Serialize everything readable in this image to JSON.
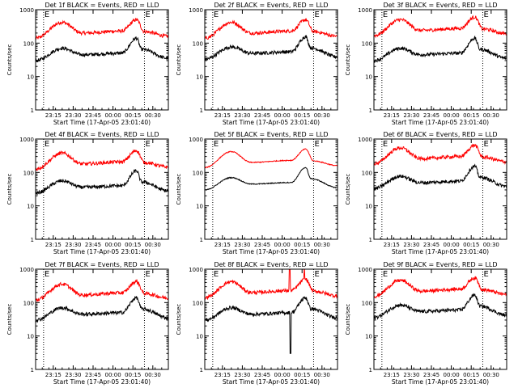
{
  "chart_data": {
    "type": "line",
    "layout_grid": "3x3",
    "y_scale": "log",
    "ylim": [
      1,
      1000
    ],
    "y_ticks": [
      1,
      10,
      100,
      1000
    ],
    "y_tick_labels": [
      "1",
      "10",
      "100",
      "1000"
    ],
    "ylabel": "Counts/sec",
    "xlabel": "Start Time (17-Apr-05 23:01:40)",
    "x_unit": "minutes after 23:01:40",
    "xlim": [
      0,
      100
    ],
    "grid": false,
    "marker_labels": [
      "E",
      "E"
    ],
    "colors": {
      "events": "#000000",
      "lld": "#ff0000",
      "axes": "#000000",
      "background": "#ffffff"
    },
    "series_profiles": {
      "events": {
        "baseline": [
          [
            0,
            30
          ],
          [
            20,
            70
          ],
          [
            35,
            45
          ],
          [
            65,
            50
          ],
          [
            76,
            140
          ],
          [
            80,
            65
          ],
          [
            100,
            35
          ]
        ]
      },
      "lld": {
        "baseline": [
          [
            0,
            140
          ],
          [
            20,
            420
          ],
          [
            35,
            200
          ],
          [
            65,
            230
          ],
          [
            76,
            500
          ],
          [
            82,
            220
          ],
          [
            100,
            160
          ]
        ]
      }
    },
    "panels": [
      {
        "title": "Det 1f BLACK = Events, RED = LLD",
        "x_tick_labels": [
          "23:15",
          "23:30",
          "23:45",
          "00:00",
          "00:15",
          "00:30"
        ],
        "x_ticks": [
          13.3,
          28.3,
          43.3,
          58.3,
          73.3,
          88.3
        ],
        "dotted_lines": [
          6,
          82
        ],
        "events_scale": 1.0,
        "lld_scale": 1.0
      },
      {
        "title": "Det 2f BLACK = Events, RED = LLD",
        "x_tick_labels": [
          "23:15",
          "23:30",
          "23:45",
          "00:00",
          "00:15",
          "00:30"
        ],
        "x_ticks": [
          13.3,
          28.3,
          43.3,
          58.3,
          73.3,
          88.3
        ],
        "dotted_lines": [
          6,
          82
        ],
        "events_scale": 1.1,
        "lld_scale": 1.0
      },
      {
        "title": "Det 3f BLACK = Events, RED = LLD",
        "x_tick_labels": [
          "23:15",
          "23:30",
          "23:45",
          "00:00",
          "00:15",
          "00:30"
        ],
        "x_ticks": [
          13.3,
          28.3,
          43.3,
          58.3,
          73.3,
          88.3
        ],
        "dotted_lines": [
          6,
          82
        ],
        "events_scale": 1.0,
        "lld_scale": 1.2
      },
      {
        "title": "Det 4f BLACK = Events, RED = LLD",
        "x_tick_labels": [
          "23:15",
          "23:30",
          "23:45",
          "00:00",
          "00:15",
          "00:30"
        ],
        "x_ticks": [
          13.3,
          28.3,
          43.3,
          58.3,
          73.3,
          88.3
        ],
        "dotted_lines": [
          6,
          82
        ],
        "events_scale": 0.8,
        "lld_scale": 0.9
      },
      {
        "title": "Det 5f BLACK = Events, RED = LLD",
        "x_tick_labels": [
          "23:15",
          "23:30",
          "23:45",
          "00:00",
          "00:15",
          "00:30"
        ],
        "x_ticks": [
          13.3,
          28.3,
          43.3,
          58.3,
          73.3,
          88.3
        ],
        "dotted_lines": [
          6,
          82
        ],
        "events_scale": 1.0,
        "lld_scale": 1.0,
        "smooth": true
      },
      {
        "title": "Det 6f BLACK = Events, RED = LLD",
        "x_tick_labels": [
          "23:15",
          "23:30",
          "23:45",
          "00:00",
          "00:15",
          "00:30"
        ],
        "x_ticks": [
          13.3,
          28.3,
          43.3,
          58.3,
          73.3,
          88.3
        ],
        "dotted_lines": [
          6,
          82
        ],
        "events_scale": 1.1,
        "lld_scale": 1.3
      },
      {
        "title": "Det 7f BLACK = Events, RED = LLD",
        "x_tick_labels": [
          "23:15",
          "23:30",
          "23:45",
          "00:00",
          "00:15",
          "00:30"
        ],
        "x_ticks": [
          13.3,
          28.3,
          43.3,
          58.3,
          73.3,
          88.3
        ],
        "dotted_lines": [
          6,
          82
        ],
        "events_scale": 1.0,
        "lld_scale": 0.85
      },
      {
        "title": "Det 8f BLACK = Events, RED = LLD",
        "x_tick_labels": [
          "23:15",
          "23:30",
          "23:45",
          "00:00",
          "00:15",
          "00:30"
        ],
        "x_ticks": [
          13.3,
          28.3,
          43.3,
          58.3,
          73.3,
          88.3
        ],
        "dotted_lines": [
          6,
          82
        ],
        "events_scale": 1.0,
        "lld_scale": 1.0,
        "spikes": {
          "lld_x": [
            64,
            75
          ],
          "events_dip_x": [
            64,
            66
          ],
          "events_dip_min": 3
        }
      },
      {
        "title": "Det 9f BLACK = Events, RED = LLD",
        "x_tick_labels": [
          "23:15",
          "23:30",
          "23:45",
          "00:00",
          "00:15",
          "00:30"
        ],
        "x_ticks": [
          13.3,
          28.3,
          43.3,
          58.3,
          73.3,
          88.3
        ],
        "dotted_lines": [
          6,
          82
        ],
        "events_scale": 1.2,
        "lld_scale": 1.1
      }
    ]
  }
}
